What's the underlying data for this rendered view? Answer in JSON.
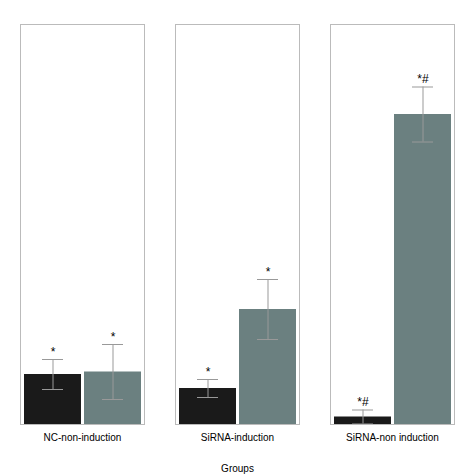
{
  "chart_data": {
    "type": "bar",
    "xlabel": "Groups",
    "categories": [
      "NC-non-induction",
      "SiRNA-induction",
      "SiRNA-non induction"
    ],
    "series": [
      {
        "color": "#1a1a1a",
        "values": [
          1.0,
          0.72,
          0.15
        ],
        "errors": [
          0.3,
          0.18,
          0.14
        ],
        "annotations": [
          "*",
          "*",
          "*#"
        ]
      },
      {
        "color": "#6b8080",
        "values": [
          1.05,
          2.3,
          6.2
        ],
        "errors": [
          0.55,
          0.6,
          0.55
        ],
        "annotations": [
          "*",
          "*",
          "*#"
        ]
      }
    ],
    "ylim": [
      0,
      8.0
    ],
    "yticks": [],
    "tick_labels": "x",
    "grid": false
  }
}
